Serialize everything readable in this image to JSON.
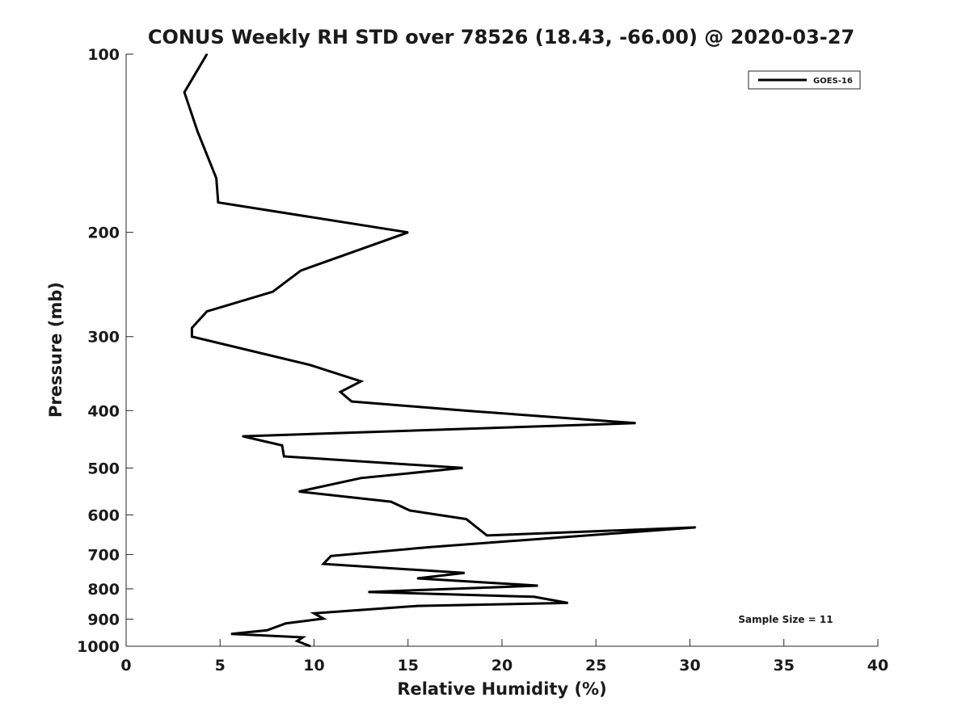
{
  "chart_data": {
    "type": "line",
    "title": "CONUS Weekly RH STD over 78526 (18.43, -66.00) @ 2020-03-27",
    "xlabel": "Relative Humidity (%)",
    "ylabel": "Pressure (mb)",
    "xlim": [
      0,
      40
    ],
    "ylim": [
      1000,
      100
    ],
    "yscale": "log",
    "x_ticks": [
      0,
      5,
      10,
      15,
      20,
      25,
      30,
      35,
      40
    ],
    "y_ticks": [
      100,
      200,
      300,
      400,
      500,
      600,
      700,
      800,
      900,
      1000
    ],
    "legend_position": "top-right",
    "annotation": "Sample Size = 11",
    "series": [
      {
        "name": "GOES-16",
        "color": "#000000",
        "x": [
          4.3,
          3.1,
          3.8,
          4.8,
          4.9,
          15.0,
          9.3,
          7.8,
          4.3,
          3.5,
          3.5,
          9.8,
          12.5,
          11.4,
          12.0,
          18.0,
          27.1,
          6.2,
          8.3,
          8.4,
          17.9,
          12.5,
          9.2,
          14.1,
          15.1,
          18.1,
          19.2,
          30.3,
          16.2,
          10.9,
          10.5,
          18.0,
          15.5,
          21.9,
          12.9,
          21.7,
          23.5,
          15.5,
          10.0,
          10.5,
          8.5,
          7.5,
          5.6,
          9.4,
          9.1,
          9.8
        ],
        "y": [
          100,
          116,
          135,
          162,
          178,
          200,
          232,
          252,
          272,
          290,
          300,
          335,
          357,
          372,
          386,
          400,
          420,
          442,
          458,
          478,
          500,
          520,
          548,
          570,
          590,
          610,
          650,
          630,
          680,
          704,
          726,
          752,
          768,
          790,
          810,
          825,
          845,
          855,
          880,
          898,
          915,
          940,
          953,
          966,
          980,
          1000
        ]
      }
    ]
  }
}
